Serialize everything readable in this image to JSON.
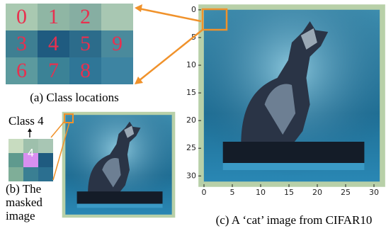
{
  "class_grid": {
    "cells": [
      [
        0,
        1,
        2,
        null
      ],
      [
        3,
        4,
        5,
        9
      ],
      [
        6,
        7,
        8,
        null
      ]
    ],
    "caption": "(a) Class locations"
  },
  "masked": {
    "label": "Class 4",
    "cell": 4,
    "caption": [
      "(b) The",
      "masked",
      "image"
    ]
  },
  "image": {
    "caption": "(c) A ‘cat’ image from CIFAR10",
    "xlim": [
      -0.5,
      31.5
    ],
    "ylim": [
      -0.5,
      31.5
    ],
    "xticks": [
      0,
      5,
      10,
      15,
      20,
      25,
      30
    ],
    "yticks": [
      0,
      5,
      10,
      15,
      20,
      25,
      30
    ]
  }
}
